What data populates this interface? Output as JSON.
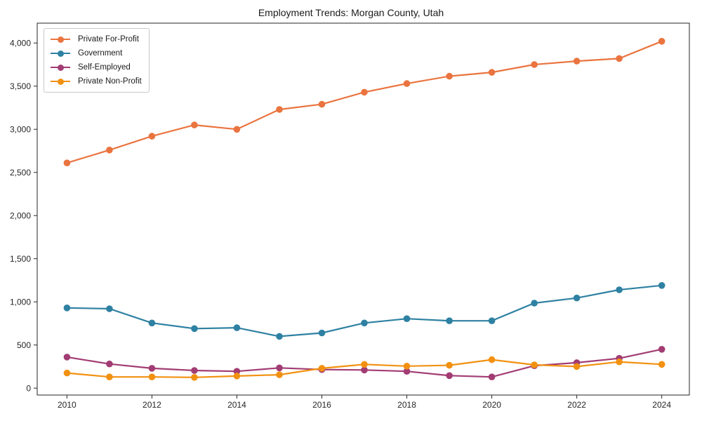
{
  "window": {
    "title": "Employment Trends: Morgan County, Utah"
  },
  "chart_data": {
    "type": "line",
    "title": "Employment Trends: Morgan County, Utah",
    "xlabel": "",
    "ylabel": "",
    "grid": false,
    "legend_position": "upper-left",
    "xlim": [
      2009.3,
      2024.65
    ],
    "ylim": [
      -80,
      4230
    ],
    "x": [
      2010,
      2011,
      2012,
      2013,
      2014,
      2015,
      2016,
      2017,
      2018,
      2019,
      2020,
      2021,
      2022,
      2023,
      2024
    ],
    "x_ticks": [
      2010,
      2012,
      2014,
      2016,
      2018,
      2020,
      2022,
      2024
    ],
    "x_tick_labels": [
      "2010",
      "2012",
      "2014",
      "2016",
      "2018",
      "2020",
      "2022",
      "2024"
    ],
    "y_ticks": [
      0,
      500,
      1000,
      1500,
      2000,
      2500,
      3000,
      3500,
      4000
    ],
    "y_tick_labels": [
      "0",
      "500",
      "1,000",
      "1,500",
      "2,000",
      "2,500",
      "3,000",
      "3,500",
      "4,000"
    ],
    "series": [
      {
        "name": "Private For-Profit",
        "color": "#EA743F",
        "values": [
          2610,
          2760,
          2920,
          3050,
          3000,
          3230,
          3290,
          3430,
          3530,
          3615,
          3660,
          3750,
          3790,
          3820,
          4020
        ]
      },
      {
        "name": "Government",
        "color": "#2E81A2",
        "values": [
          930,
          920,
          755,
          690,
          700,
          600,
          640,
          755,
          805,
          780,
          780,
          985,
          1045,
          1140,
          1190
        ]
      },
      {
        "name": "Self-Employed",
        "color": "#A23C73",
        "values": [
          360,
          280,
          230,
          205,
          195,
          235,
          215,
          210,
          195,
          145,
          130,
          260,
          295,
          345,
          450
        ]
      },
      {
        "name": "Private Non-Profit",
        "color": "#F29111",
        "values": [
          175,
          130,
          130,
          125,
          140,
          155,
          230,
          275,
          255,
          265,
          330,
          270,
          250,
          305,
          275
        ]
      }
    ]
  }
}
